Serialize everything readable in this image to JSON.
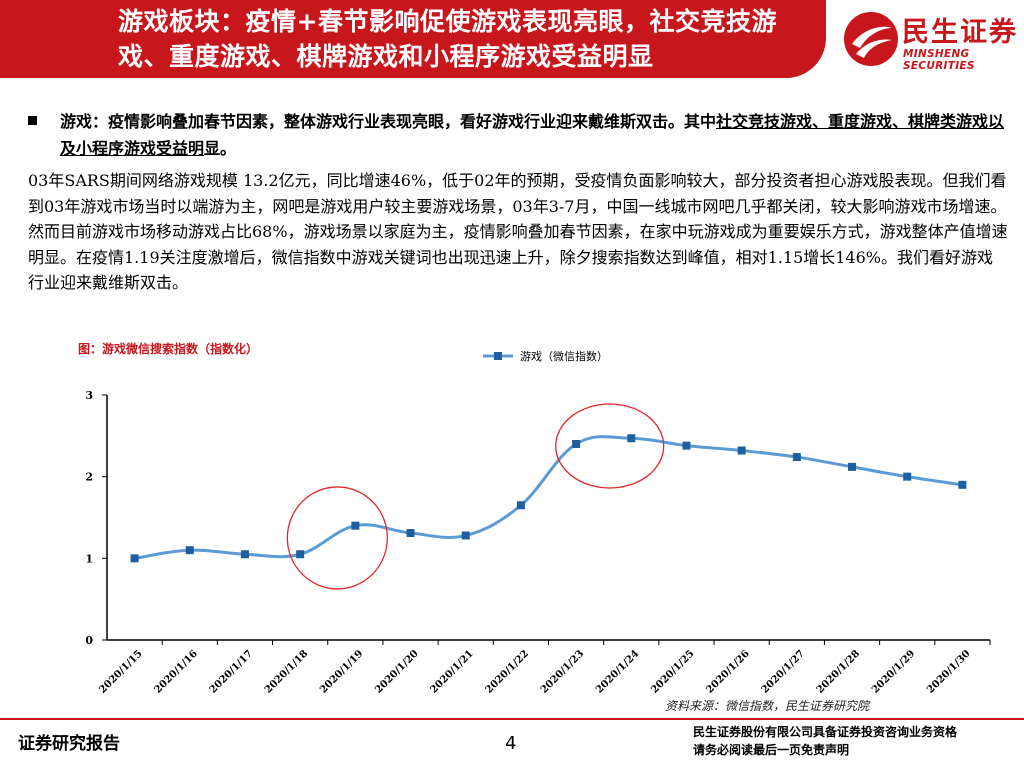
{
  "header": {
    "title": "游戏板块：疫情+春节影响促使游戏表现亮眼，社交竞技游戏、重度游戏、棋牌游戏和小程序游戏受益明显",
    "logo_cn": "民生证券",
    "logo_en": "MINSHENG SECURITIES"
  },
  "bullet": {
    "prefix": "游戏：疫情影响叠加春节因素，整体游戏行业表现亮眼，看好游戏行业迎来戴维斯双击。其中",
    "underlined": "社交竞技游戏、重度游戏、棋牌类游戏以及小程序游戏受益明",
    "suffix": "显。"
  },
  "paragraph": "03年SARS期间网络游戏规模 13.2亿元，同比增速46%，低于02年的预期，受疫情负面影响较大，部分投资者担心游戏股表现。但我们看到03年游戏市场当时以端游为主，网吧是游戏用户较主要游戏场景，03年3-7月，中国一线城市网吧几乎都关闭，较大影响游戏市场增速。然而目前游戏市场移动游戏占比68%，游戏场景以家庭为主，疫情影响叠加春节因素，在家中玩游戏成为重要娱乐方式，游戏整体产值增速明显。在疫情1.19关注度激增后，微信指数中游戏关键词也出现迅速上升，除夕搜索指数达到峰值，相对1.15增长146%。我们看好游戏行业迎来戴维斯双击。",
  "figure_title": "图：游戏微信搜索指数（指数化）",
  "source": "资料来源：微信指数，民生证券研究院",
  "footer": {
    "left": "证券研究报告",
    "page": "4",
    "right_line1": "民生证券股份有限公司具备证券投资咨询业务资格",
    "right_line2": "请务必阅读最后一页免责声明"
  },
  "colors": {
    "brand_red": "#c8161d",
    "line": "#5b9bd5",
    "marker": "#1f5fa0",
    "highlight_circle": "#e3262b"
  },
  "chart_data": {
    "type": "line",
    "categories": [
      "2020/1/15",
      "2020/1/16",
      "2020/1/17",
      "2020/1/18",
      "2020/1/19",
      "2020/1/20",
      "2020/1/21",
      "2020/1/22",
      "2020/1/23",
      "2020/1/24",
      "2020/1/25",
      "2020/1/26",
      "2020/1/27",
      "2020/1/28",
      "2020/1/29",
      "2020/1/30"
    ],
    "series": [
      {
        "name": "游戏（微信指数）",
        "values": [
          1.0,
          1.1,
          1.05,
          1.05,
          1.4,
          1.31,
          1.28,
          1.65,
          2.4,
          2.47,
          2.38,
          2.32,
          2.24,
          2.12,
          2.0,
          1.9
        ]
      }
    ],
    "yticks": [
      0,
      1,
      2,
      3
    ],
    "ylim": [
      0,
      3
    ],
    "title": "游戏微信搜索指数（指数化）",
    "xlabel": "",
    "ylabel": "",
    "legend": "top-center",
    "highlights": [
      "2020/1/19",
      "2020/1/23-2020/1/24"
    ]
  }
}
